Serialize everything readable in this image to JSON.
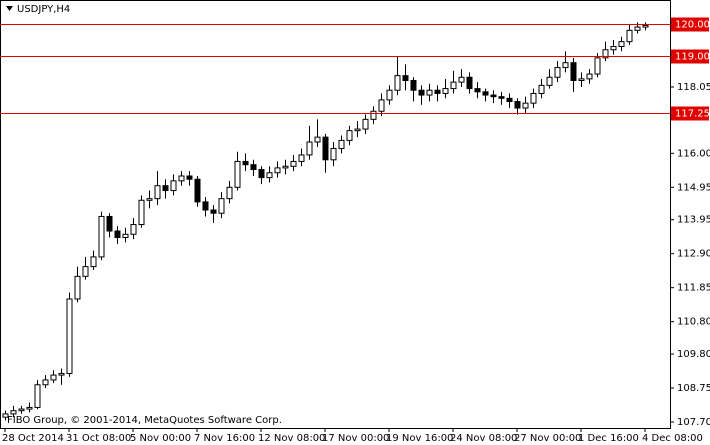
{
  "chart_data": {
    "type": "candlestick",
    "title": "USDJPY,H4",
    "footer": "FIBO Group, © 2001-2014, MetaQuotes Software Corp.",
    "categories": [
      "28 Oct 2014",
      null,
      null,
      null,
      null,
      null,
      null,
      null,
      "31 Oct 08:00",
      null,
      null,
      null,
      null,
      null,
      null,
      null,
      "5 Nov 00:00",
      null,
      null,
      null,
      null,
      null,
      null,
      null,
      "7 Nov 16:00",
      null,
      null,
      null,
      null,
      null,
      null,
      null,
      "12 Nov 08:00",
      null,
      null,
      null,
      null,
      null,
      null,
      null,
      "17 Nov 00:00",
      null,
      null,
      null,
      null,
      null,
      null,
      null,
      "19 Nov 16:00",
      null,
      null,
      null,
      null,
      null,
      null,
      null,
      "24 Nov 08:00",
      null,
      null,
      null,
      null,
      null,
      null,
      null,
      "27 Nov 00:00",
      null,
      null,
      null,
      null,
      null,
      null,
      null,
      "1 Dec 16:00",
      null,
      null,
      null,
      null,
      null,
      null,
      null,
      "4 Dec 08:00"
    ],
    "open": [
      107.85,
      107.95,
      108.05,
      108.1,
      108.15,
      108.85,
      109.0,
      109.15,
      109.2,
      111.5,
      112.2,
      112.5,
      112.8,
      114.05,
      113.6,
      113.4,
      113.5,
      113.8,
      114.55,
      114.6,
      115.0,
      114.85,
      115.15,
      115.3,
      115.2,
      114.5,
      114.25,
      114.15,
      114.6,
      114.95,
      115.75,
      115.65,
      115.5,
      115.25,
      115.4,
      115.55,
      115.6,
      115.75,
      115.95,
      116.35,
      116.5,
      115.8,
      116.15,
      116.4,
      116.7,
      116.75,
      117.05,
      117.3,
      117.65,
      117.95,
      118.4,
      118.25,
      117.95,
      117.8,
      117.95,
      117.85,
      118.0,
      118.2,
      118.35,
      118.0,
      117.9,
      117.8,
      117.75,
      117.7,
      117.6,
      117.4,
      117.55,
      117.85,
      118.1,
      118.35,
      118.65,
      118.8,
      118.25,
      118.3,
      118.45,
      118.95,
      119.2,
      119.3,
      119.45,
      119.8,
      119.9
    ],
    "high": [
      108.05,
      108.2,
      108.2,
      108.3,
      109.0,
      109.15,
      109.3,
      109.35,
      111.7,
      112.5,
      112.8,
      113.0,
      114.2,
      114.15,
      113.75,
      113.7,
      114.0,
      114.7,
      114.85,
      115.45,
      115.2,
      115.35,
      115.45,
      115.45,
      115.3,
      114.65,
      114.4,
      114.8,
      115.15,
      116.05,
      116.0,
      115.8,
      115.6,
      115.6,
      115.75,
      115.8,
      115.95,
      116.15,
      116.85,
      117.05,
      116.6,
      116.35,
      116.55,
      116.85,
      117.0,
      117.2,
      117.45,
      117.85,
      118.1,
      119.0,
      118.75,
      118.35,
      118.1,
      118.15,
      118.1,
      118.3,
      118.55,
      118.6,
      118.5,
      118.2,
      118.0,
      117.95,
      117.9,
      117.85,
      117.7,
      117.75,
      118.0,
      118.3,
      118.6,
      118.85,
      119.15,
      118.95,
      118.5,
      118.6,
      119.1,
      119.45,
      119.5,
      119.6,
      120.0,
      120.05,
      120.05
    ],
    "low": [
      107.75,
      107.85,
      107.95,
      108.0,
      108.1,
      108.75,
      108.9,
      108.85,
      109.1,
      111.4,
      112.1,
      112.4,
      112.7,
      113.4,
      113.2,
      113.25,
      113.35,
      113.7,
      114.3,
      114.4,
      114.6,
      114.7,
      115.0,
      115.0,
      114.35,
      114.05,
      113.85,
      114.0,
      114.45,
      114.85,
      115.45,
      115.3,
      115.05,
      115.1,
      115.25,
      115.35,
      115.45,
      115.6,
      115.8,
      116.2,
      115.4,
      115.6,
      116.0,
      116.25,
      116.5,
      116.6,
      116.9,
      117.15,
      117.5,
      117.8,
      117.95,
      117.6,
      117.5,
      117.6,
      117.6,
      117.7,
      117.85,
      118.05,
      117.85,
      117.7,
      117.6,
      117.55,
      117.5,
      117.4,
      117.2,
      117.25,
      117.4,
      117.7,
      118.0,
      118.2,
      118.5,
      117.9,
      118.05,
      118.15,
      118.35,
      118.85,
      119.05,
      119.15,
      119.35,
      119.7,
      119.8
    ],
    "close": [
      107.95,
      108.05,
      108.1,
      108.15,
      108.85,
      109.0,
      109.15,
      109.2,
      111.5,
      112.2,
      112.5,
      112.8,
      114.05,
      113.6,
      113.4,
      113.5,
      113.8,
      114.55,
      114.6,
      115.0,
      114.85,
      115.15,
      115.3,
      115.2,
      114.5,
      114.25,
      114.15,
      114.6,
      114.95,
      115.75,
      115.65,
      115.5,
      115.25,
      115.4,
      115.55,
      115.6,
      115.75,
      115.95,
      116.35,
      116.5,
      115.8,
      116.15,
      116.4,
      116.7,
      116.75,
      117.05,
      117.3,
      117.65,
      117.95,
      118.4,
      118.25,
      117.95,
      117.8,
      117.95,
      117.85,
      118.0,
      118.2,
      118.35,
      118.0,
      117.9,
      117.8,
      117.75,
      117.7,
      117.6,
      117.4,
      117.55,
      117.85,
      118.1,
      118.35,
      118.65,
      118.8,
      118.25,
      118.3,
      118.45,
      118.95,
      119.2,
      119.3,
      119.45,
      119.8,
      119.9,
      119.95
    ],
    "ylim": [
      107.515,
      120.675
    ],
    "yticks": [
      118.05,
      {
        "value": 116,
        "label": "116.00"
      },
      114.95,
      113.95,
      {
        "value": 112.9,
        "label": "112.90"
      },
      111.85,
      {
        "value": 110.8,
        "label": "110.80"
      },
      {
        "value": 109.8,
        "label": "109.80"
      },
      108.75,
      {
        "value": 107.7,
        "label": "107.70"
      }
    ],
    "hlines": [
      {
        "value": 120,
        "label": "120.00"
      },
      {
        "value": 119,
        "label": "119.00"
      },
      {
        "value": 117.25,
        "label": "117.25"
      }
    ],
    "hline_color": "#e00000"
  }
}
